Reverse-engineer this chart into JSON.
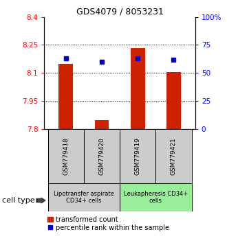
{
  "title": "GDS4079 / 8053231",
  "samples": [
    "GSM779418",
    "GSM779420",
    "GSM779419",
    "GSM779421"
  ],
  "transformed_counts": [
    8.15,
    7.845,
    8.235,
    8.105
  ],
  "percentile_ranks": [
    63,
    60,
    63,
    62
  ],
  "ylim_left": [
    7.8,
    8.4
  ],
  "ylim_right": [
    0,
    100
  ],
  "yticks_left": [
    7.8,
    7.95,
    8.1,
    8.25,
    8.4
  ],
  "ytick_labels_left": [
    "7.8",
    "7.95",
    "8.1",
    "8.25",
    "8.4"
  ],
  "yticks_right": [
    0,
    25,
    50,
    75,
    100
  ],
  "ytick_labels_right": [
    "0",
    "25",
    "50",
    "75",
    "100%"
  ],
  "bar_color": "#cc2200",
  "dot_color": "#0000cc",
  "bar_width": 0.4,
  "cell_groups": [
    {
      "label": "Lipotransfer aspirate\nCD34+ cells",
      "color": "#cccccc",
      "samples": [
        0,
        1
      ]
    },
    {
      "label": "Leukapheresis CD34+\ncells",
      "color": "#99ee99",
      "samples": [
        2,
        3
      ]
    }
  ],
  "cell_type_label": "cell type",
  "legend_bar_label": "transformed count",
  "legend_dot_label": "percentile rank within the sample",
  "background_color": "#ffffff",
  "sample_box_color": "#cccccc"
}
